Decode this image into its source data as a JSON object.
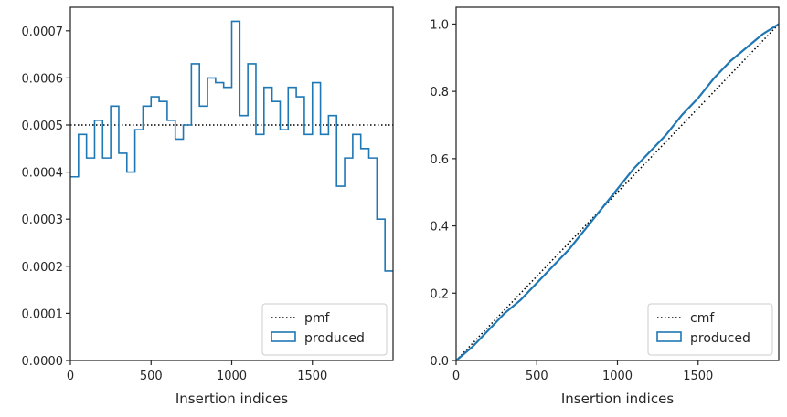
{
  "chart_data": [
    {
      "type": "histogram-step",
      "xlabel": "Insertion indices",
      "ylabel": "",
      "xlim": [
        0,
        2000
      ],
      "ylim": [
        0,
        0.00075
      ],
      "xticks": [
        "0",
        "500",
        "1000",
        "1500"
      ],
      "xtick_values": [
        0,
        500,
        1000,
        1500
      ],
      "yticks": [
        "0.0000",
        "0.0001",
        "0.0002",
        "0.0003",
        "0.0004",
        "0.0005",
        "0.0006",
        "0.0007"
      ],
      "ytick_values": [
        0,
        0.0001,
        0.0002,
        0.0003,
        0.0004,
        0.0005,
        0.0006,
        0.0007
      ],
      "grid": false,
      "legend_position": "lower-right",
      "series": [
        {
          "name": "pmf",
          "style": "dotted",
          "color": "#000000",
          "x": [
            0,
            2000
          ],
          "y": [
            0.0005,
            0.0005
          ]
        },
        {
          "name": "produced",
          "style": "step",
          "color": "#1f77b4",
          "bin_width": 50,
          "bin_starts": [
            0,
            50,
            100,
            150,
            200,
            250,
            300,
            350,
            400,
            450,
            500,
            550,
            600,
            650,
            700,
            750,
            800,
            850,
            900,
            950,
            1000,
            1050,
            1100,
            1150,
            1200,
            1250,
            1300,
            1350,
            1400,
            1450,
            1500,
            1550,
            1600,
            1650,
            1700,
            1750,
            1800,
            1850,
            1900,
            1950
          ],
          "values": [
            0.00039,
            0.00048,
            0.00043,
            0.00051,
            0.00043,
            0.00054,
            0.00044,
            0.0004,
            0.00049,
            0.00054,
            0.00056,
            0.00055,
            0.00051,
            0.00047,
            0.0005,
            0.00063,
            0.00054,
            0.0006,
            0.00059,
            0.00058,
            0.00072,
            0.00052,
            0.00063,
            0.00048,
            0.00058,
            0.00055,
            0.00049,
            0.00058,
            0.00056,
            0.00048,
            0.00059,
            0.00048,
            0.00052,
            0.00037,
            0.00043,
            0.00048,
            0.00045,
            0.00043,
            0.0003,
            0.00019
          ]
        }
      ]
    },
    {
      "type": "line",
      "xlabel": "Insertion indices",
      "ylabel": "",
      "xlim": [
        0,
        2000
      ],
      "ylim": [
        0,
        1.05
      ],
      "xticks": [
        "0",
        "500",
        "1000",
        "1500"
      ],
      "xtick_values": [
        0,
        500,
        1000,
        1500
      ],
      "yticks": [
        "0.0",
        "0.2",
        "0.4",
        "0.6",
        "0.8",
        "1.0"
      ],
      "ytick_values": [
        0,
        0.2,
        0.4,
        0.6,
        0.8,
        1.0
      ],
      "grid": false,
      "legend_position": "lower-right",
      "series": [
        {
          "name": "cmf",
          "style": "dotted",
          "color": "#000000",
          "x": [
            0,
            2000
          ],
          "y": [
            0,
            1.0
          ]
        },
        {
          "name": "produced",
          "style": "line",
          "color": "#1f77b4",
          "x": [
            0,
            100,
            200,
            300,
            400,
            500,
            600,
            700,
            800,
            900,
            1000,
            1100,
            1200,
            1300,
            1400,
            1500,
            1600,
            1700,
            1800,
            1900,
            2000
          ],
          "y": [
            0,
            0.04,
            0.09,
            0.14,
            0.18,
            0.23,
            0.28,
            0.33,
            0.39,
            0.45,
            0.51,
            0.57,
            0.62,
            0.67,
            0.73,
            0.78,
            0.84,
            0.89,
            0.93,
            0.97,
            1.0
          ]
        }
      ]
    }
  ]
}
